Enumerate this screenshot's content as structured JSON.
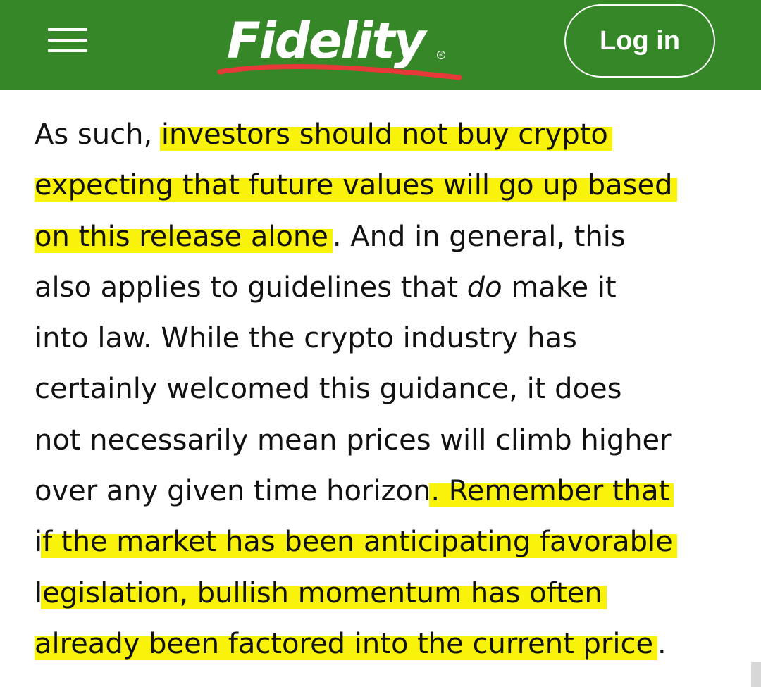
{
  "header": {
    "brand": "Fidelity",
    "brand_reg_mark": "®",
    "login_label": "Log in",
    "background_color": "#368727",
    "swoosh_color": "#e8393a"
  },
  "icons": {
    "menu": "hamburger-menu-icon"
  },
  "article": {
    "highlight_color": "#f9f20a",
    "lines": [
      {
        "pre": "As such, ",
        "hl": "investors should not buy crypto",
        "post": ""
      },
      {
        "pre": "",
        "hl": "expecting that future values will go up based",
        "post": ""
      },
      {
        "pre": "",
        "hl": "on this release alone",
        "post": ". And in general, this"
      },
      {
        "pre": "also applies to guidelines that ",
        "em": "do",
        "post": " make it"
      },
      {
        "pre": "into law. While the crypto industry has"
      },
      {
        "pre": "certainly welcomed this guidance, it does"
      },
      {
        "pre": "not necessarily mean prices will climb higher"
      },
      {
        "pre": "over any given time horizon",
        "hl": ". Remember that",
        "post": ""
      },
      {
        "pre": "i",
        "hl": "f the market has been anticipating favorable",
        "post": ""
      },
      {
        "pre": "l",
        "hl": "egislation, bullish momentum has often",
        "post": ""
      },
      {
        "pre": "",
        "hl": "already been factored into the current price",
        "post": "."
      }
    ]
  }
}
